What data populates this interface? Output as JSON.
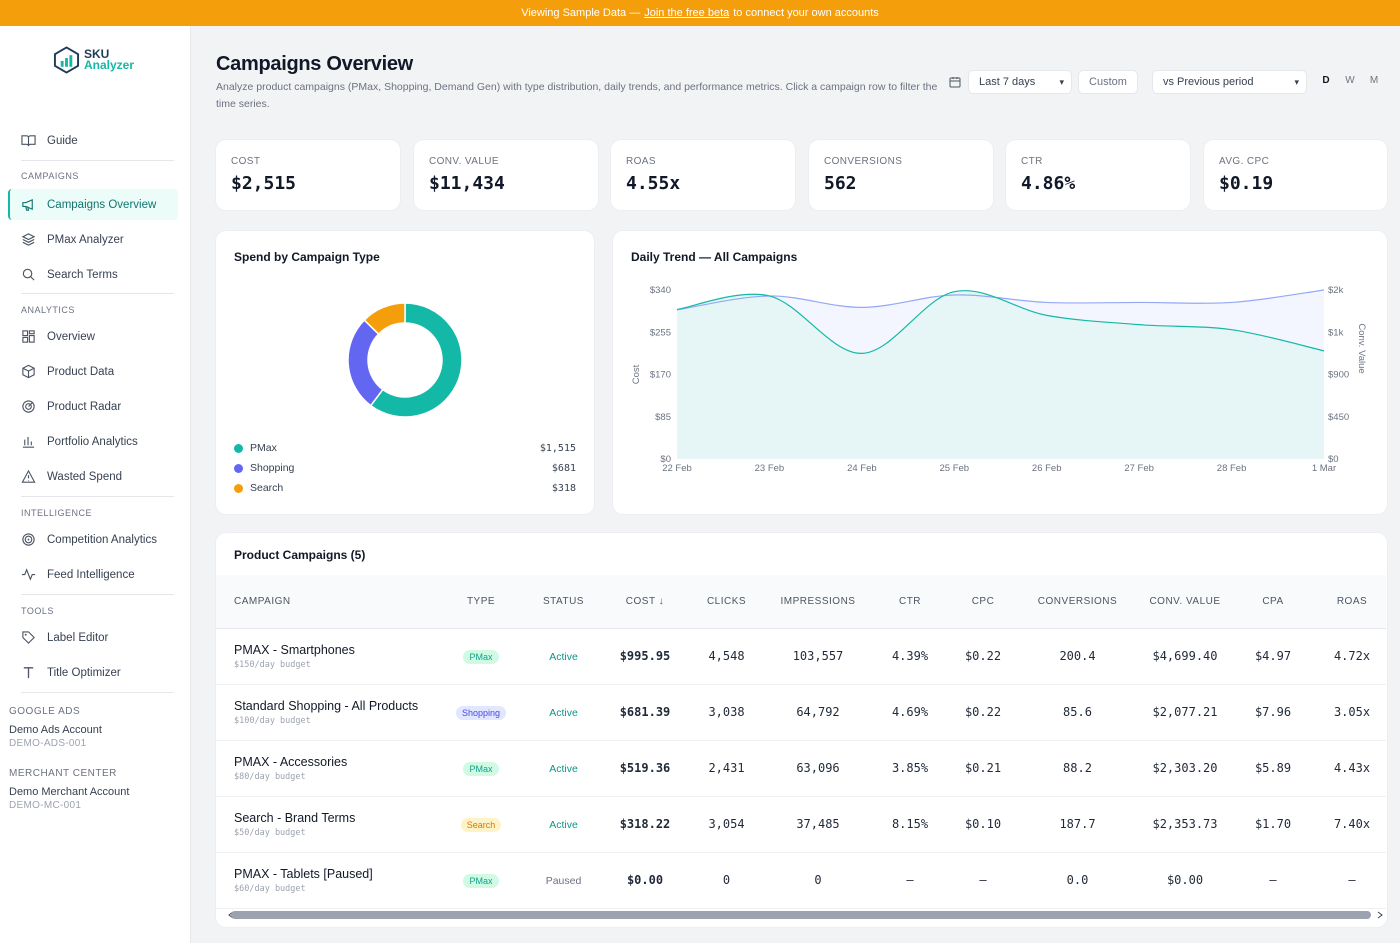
{
  "banner": {
    "prefix": "Viewing Sample Data —",
    "link": "Join the free beta",
    "suffix": "to connect your own accounts"
  },
  "logo": {
    "line1": "SKU",
    "line2": "Analyzer"
  },
  "sidebar": {
    "guide": "Guide",
    "campaigns_header": "CAMPAIGNS",
    "campaigns": [
      "Campaigns Overview",
      "PMax Analyzer",
      "Search Terms"
    ],
    "analytics_header": "ANALYTICS",
    "analytics": [
      "Overview",
      "Product Data",
      "Product Radar",
      "Portfolio Analytics",
      "Wasted Spend"
    ],
    "intelligence_header": "INTELLIGENCE",
    "intelligence": [
      "Competition Analytics",
      "Feed Intelligence"
    ],
    "tools_header": "TOOLS",
    "tools": [
      "Label Editor",
      "Title Optimizer"
    ],
    "google_ads": {
      "header": "GOOGLE ADS",
      "name": "Demo Ads Account",
      "id": "DEMO-ADS-001"
    },
    "merchant": {
      "header": "MERCHANT CENTER",
      "name": "Demo Merchant Account",
      "id": "DEMO-MC-001"
    }
  },
  "page": {
    "title": "Campaigns Overview",
    "description": "Analyze product campaigns (PMax, Shopping, Demand Gen) with type distribution, daily trends, and performance metrics. Click a campaign row to filter the time series."
  },
  "controls": {
    "range": "Last 7 days",
    "custom": "Custom",
    "compare": "vs Previous period",
    "granularity": [
      "D",
      "W",
      "M"
    ],
    "active_granularity": "D"
  },
  "kpis": [
    {
      "label": "COST",
      "value": "$2,515"
    },
    {
      "label": "CONV. VALUE",
      "value": "$11,434"
    },
    {
      "label": "ROAS",
      "value": "4.55x"
    },
    {
      "label": "CONVERSIONS",
      "value": "562"
    },
    {
      "label": "CTR",
      "value": "4.86%"
    },
    {
      "label": "AVG. CPC",
      "value": "$0.19"
    }
  ],
  "spend_card": {
    "title": "Spend by Campaign Type",
    "items": [
      {
        "name": "PMax",
        "value": "$1,515",
        "amount": 1515,
        "color": "#14b8a6"
      },
      {
        "name": "Shopping",
        "value": "$681",
        "amount": 681,
        "color": "#6366f1"
      },
      {
        "name": "Search",
        "value": "$318",
        "amount": 318,
        "color": "#f59e0b"
      }
    ]
  },
  "chart_data": {
    "type": "line",
    "title": "Daily Trend — All Campaigns",
    "x": [
      "22 Feb",
      "23 Feb",
      "24 Feb",
      "25 Feb",
      "26 Feb",
      "27 Feb",
      "28 Feb",
      "1 Mar"
    ],
    "ylabel": "Cost",
    "y2label": "Conv. Value",
    "ylim": [
      0,
      340
    ],
    "y2lim": [
      0,
      2000
    ],
    "yticks": [
      "$0",
      "$85",
      "$170",
      "$255",
      "$340"
    ],
    "y2ticks": [
      "$0",
      "$450",
      "$900",
      "$1k",
      "$2k"
    ],
    "series": [
      {
        "name": "Cost",
        "axis": "left",
        "values": [
          300,
          328,
          305,
          330,
          315,
          315,
          315,
          340
        ],
        "color": "#93a9f5"
      },
      {
        "name": "Conv. Value",
        "axis": "right",
        "values": [
          1770,
          1930,
          1250,
          1980,
          1700,
          1590,
          1530,
          1280
        ],
        "color": "#14b8a6"
      }
    ]
  },
  "table": {
    "title": "Product Campaigns (5)",
    "columns": [
      "CAMPAIGN",
      "TYPE",
      "STATUS",
      "COST ↓",
      "CLICKS",
      "IMPRESSIONS",
      "CTR",
      "CPC",
      "CONVERSIONS",
      "CONV. VALUE",
      "CPA",
      "ROAS"
    ],
    "rows": [
      {
        "name": "PMAX - Smartphones",
        "budget": "$150/day budget",
        "type": "PMax",
        "status": "Active",
        "cost": "$995.95",
        "clicks": "4,548",
        "impressions": "103,557",
        "ctr": "4.39%",
        "cpc": "$0.22",
        "conversions": "200.4",
        "conv_value": "$4,699.40",
        "cpa": "$4.97",
        "roas": "4.72x"
      },
      {
        "name": "Standard Shopping - All Products",
        "budget": "$100/day budget",
        "type": "Shopping",
        "status": "Active",
        "cost": "$681.39",
        "clicks": "3,038",
        "impressions": "64,792",
        "ctr": "4.69%",
        "cpc": "$0.22",
        "conversions": "85.6",
        "conv_value": "$2,077.21",
        "cpa": "$7.96",
        "roas": "3.05x"
      },
      {
        "name": "PMAX - Accessories",
        "budget": "$80/day budget",
        "type": "PMax",
        "status": "Active",
        "cost": "$519.36",
        "clicks": "2,431",
        "impressions": "63,096",
        "ctr": "3.85%",
        "cpc": "$0.21",
        "conversions": "88.2",
        "conv_value": "$2,303.20",
        "cpa": "$5.89",
        "roas": "4.43x"
      },
      {
        "name": "Search - Brand Terms",
        "budget": "$50/day budget",
        "type": "Search",
        "status": "Active",
        "cost": "$318.22",
        "clicks": "3,054",
        "impressions": "37,485",
        "ctr": "8.15%",
        "cpc": "$0.10",
        "conversions": "187.7",
        "conv_value": "$2,353.73",
        "cpa": "$1.70",
        "roas": "7.40x"
      },
      {
        "name": "PMAX - Tablets [Paused]",
        "budget": "$60/day budget",
        "type": "PMax",
        "status": "Paused",
        "cost": "$0.00",
        "clicks": "0",
        "impressions": "0",
        "ctr": "—",
        "cpc": "—",
        "conversions": "0.0",
        "conv_value": "$0.00",
        "cpa": "—",
        "roas": "—"
      }
    ]
  },
  "colors": {
    "accent": "#14b8a6",
    "banner": "#f59e0b",
    "pmax_bg": "#d1fae5",
    "pmax_fg": "#0f9f8c",
    "shopping_bg": "#e0e7ff",
    "shopping_fg": "#4f46e5",
    "search_bg": "#fef3c7",
    "search_fg": "#d97706",
    "active": "#0d9488",
    "paused": "#6b7280"
  }
}
